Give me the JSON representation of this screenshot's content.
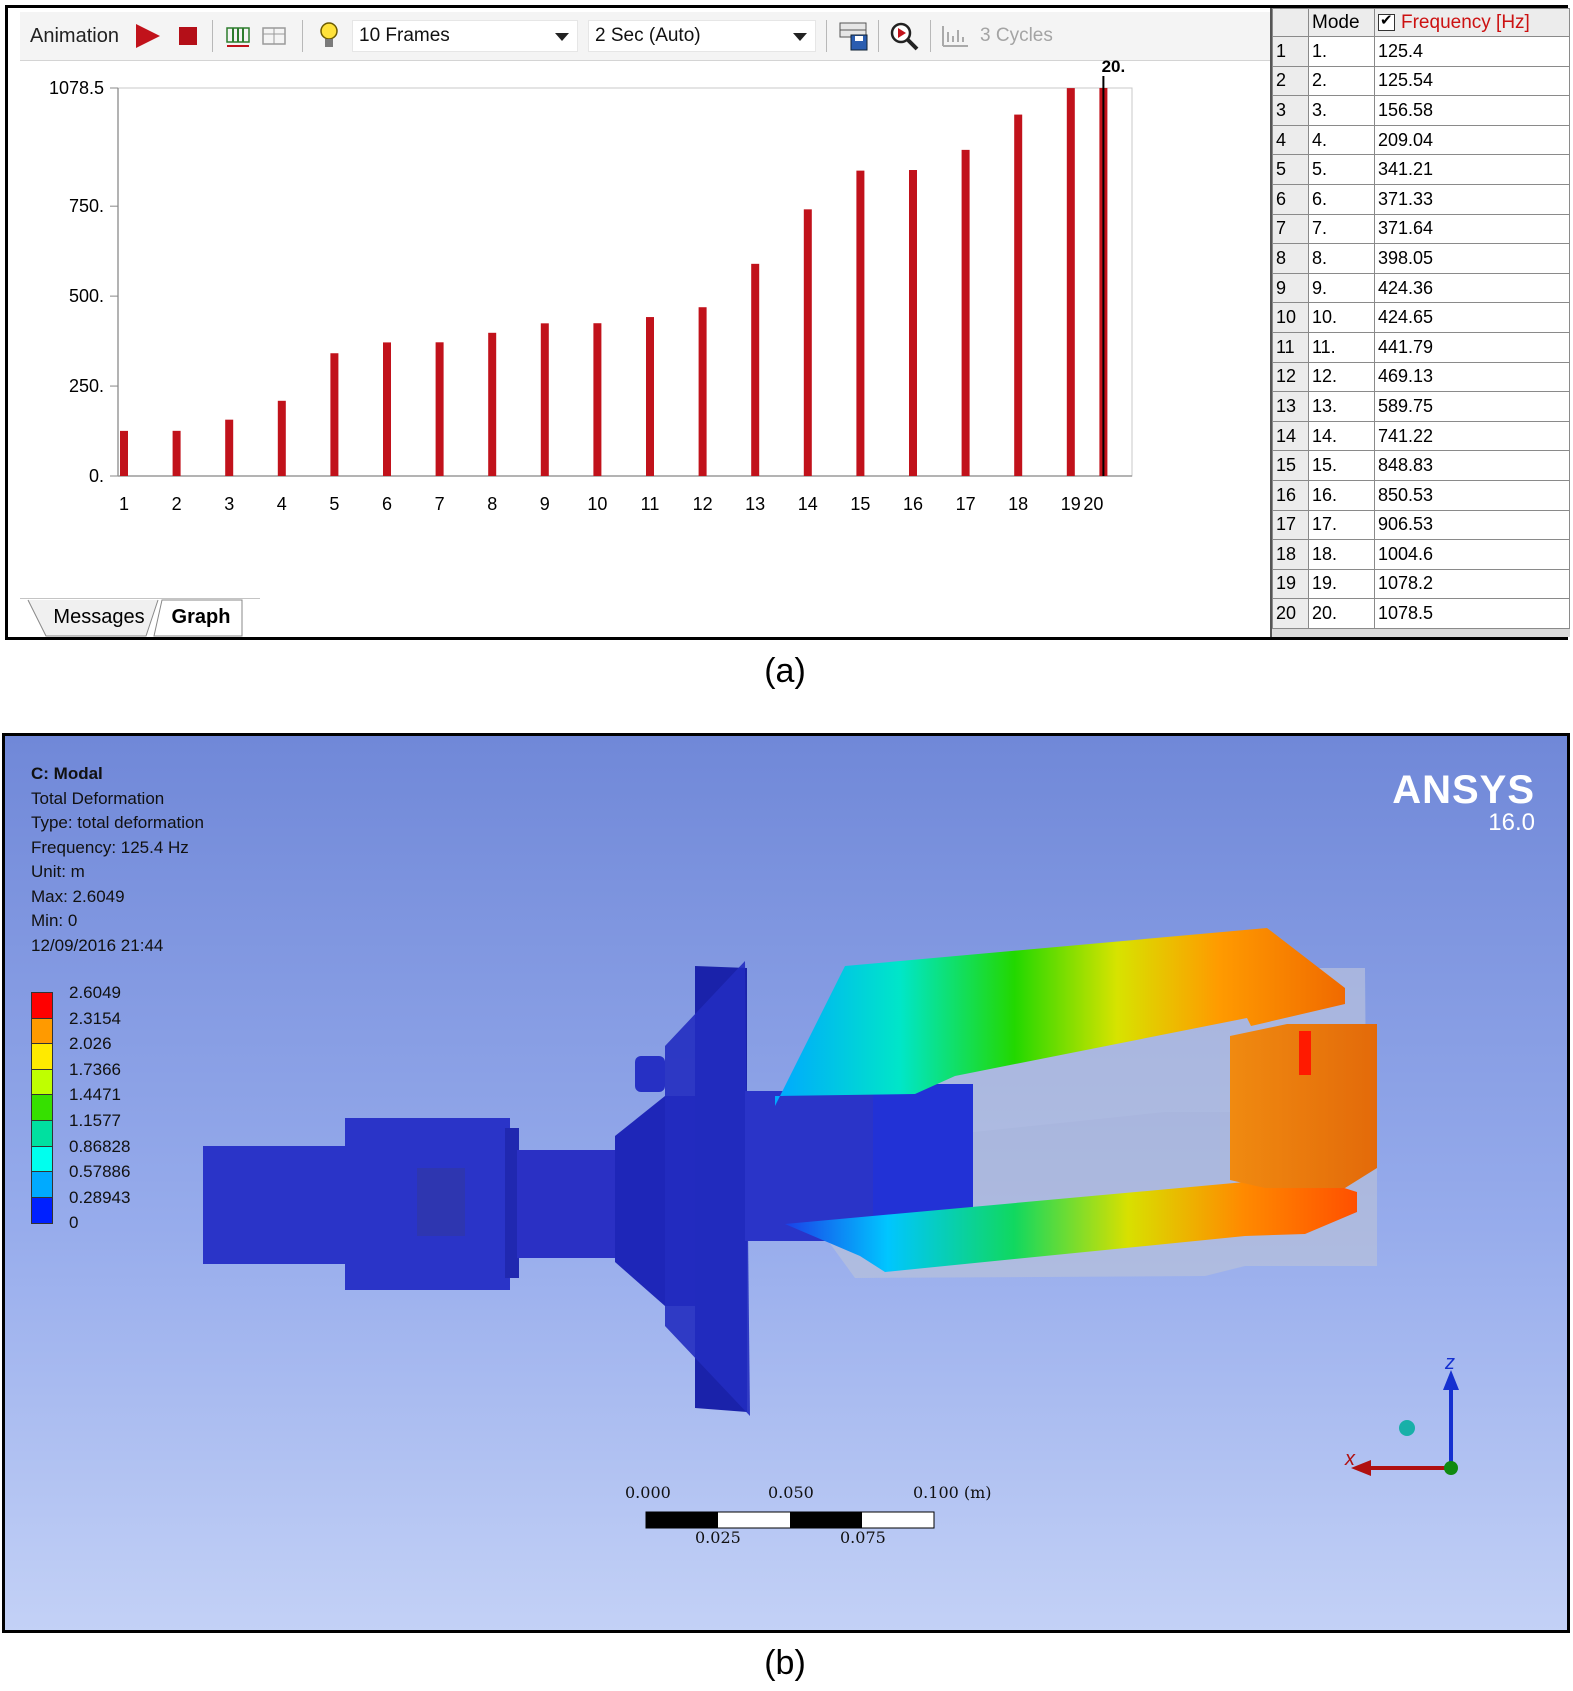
{
  "toolbar": {
    "animation_label": "Animation",
    "frames_value": "10 Frames",
    "duration_value": "2 Sec (Auto)",
    "cycles_label": "3 Cycles"
  },
  "chart_data": {
    "type": "bar",
    "categories": [
      "1",
      "2",
      "3",
      "4",
      "5",
      "6",
      "7",
      "8",
      "9",
      "10",
      "11",
      "12",
      "13",
      "14",
      "15",
      "16",
      "17",
      "18",
      "19",
      "20"
    ],
    "values": [
      125.4,
      125.54,
      156.58,
      209.04,
      341.21,
      371.33,
      371.64,
      398.05,
      424.36,
      424.65,
      441.79,
      469.13,
      589.75,
      741.22,
      848.83,
      850.53,
      906.53,
      1004.6,
      1078.2,
      1078.5
    ],
    "ylim": [
      0,
      1078.5
    ],
    "yticks": [
      "0.",
      "250.",
      "500.",
      "750.",
      "1078.5"
    ],
    "ytick_values": [
      0,
      250,
      500,
      750,
      1078.5
    ],
    "marker_label": "20.",
    "bar_color": "#c1121b",
    "grid": false
  },
  "tabs": {
    "messages": "Messages",
    "graph": "Graph"
  },
  "table": {
    "mode_header": "Mode",
    "freq_header": "Frequency [Hz]",
    "rows": [
      {
        "n": "1",
        "mode": "1.",
        "freq": "125.4"
      },
      {
        "n": "2",
        "mode": "2.",
        "freq": "125.54"
      },
      {
        "n": "3",
        "mode": "3.",
        "freq": "156.58"
      },
      {
        "n": "4",
        "mode": "4.",
        "freq": "209.04"
      },
      {
        "n": "5",
        "mode": "5.",
        "freq": "341.21"
      },
      {
        "n": "6",
        "mode": "6.",
        "freq": "371.33"
      },
      {
        "n": "7",
        "mode": "7.",
        "freq": "371.64"
      },
      {
        "n": "8",
        "mode": "8.",
        "freq": "398.05"
      },
      {
        "n": "9",
        "mode": "9.",
        "freq": "424.36"
      },
      {
        "n": "10",
        "mode": "10.",
        "freq": "424.65"
      },
      {
        "n": "11",
        "mode": "11.",
        "freq": "441.79"
      },
      {
        "n": "12",
        "mode": "12.",
        "freq": "469.13"
      },
      {
        "n": "13",
        "mode": "13.",
        "freq": "589.75"
      },
      {
        "n": "14",
        "mode": "14.",
        "freq": "741.22"
      },
      {
        "n": "15",
        "mode": "15.",
        "freq": "848.83"
      },
      {
        "n": "16",
        "mode": "16.",
        "freq": "850.53"
      },
      {
        "n": "17",
        "mode": "17.",
        "freq": "906.53"
      },
      {
        "n": "18",
        "mode": "18.",
        "freq": "1004.6"
      },
      {
        "n": "19",
        "mode": "19.",
        "freq": "1078.2"
      },
      {
        "n": "20",
        "mode": "20.",
        "freq": "1078.5"
      }
    ]
  },
  "captions": {
    "a": "(a)",
    "b": "(b)"
  },
  "result": {
    "title": "C: Modal",
    "lines": [
      "Total Deformation",
      "Type: total deformation",
      "Frequency: 125.4 Hz",
      "Unit: m",
      "Max: 2.6049",
      "Min: 0",
      "12/09/2016 21:44"
    ]
  },
  "legend": {
    "labels": [
      "2.6049",
      "2.3154",
      "2.026",
      "1.7366",
      "1.4471",
      "1.1577",
      "0.86828",
      "0.57886",
      "0.28943",
      "0"
    ],
    "colors": [
      "#ff0000",
      "#ff9a00",
      "#ffea00",
      "#bfff00",
      "#36e000",
      "#00e0a0",
      "#00ffee",
      "#00aaff",
      "#0020ff"
    ]
  },
  "brand": {
    "name": "ANSYS",
    "version": "16.0"
  },
  "scale_bar": {
    "top_labels": [
      "0.000",
      "0.050",
      "0.100 (m)"
    ],
    "bottom_labels": [
      "0.025",
      "0.075"
    ]
  },
  "triad": {
    "z": "z",
    "x": "x"
  }
}
